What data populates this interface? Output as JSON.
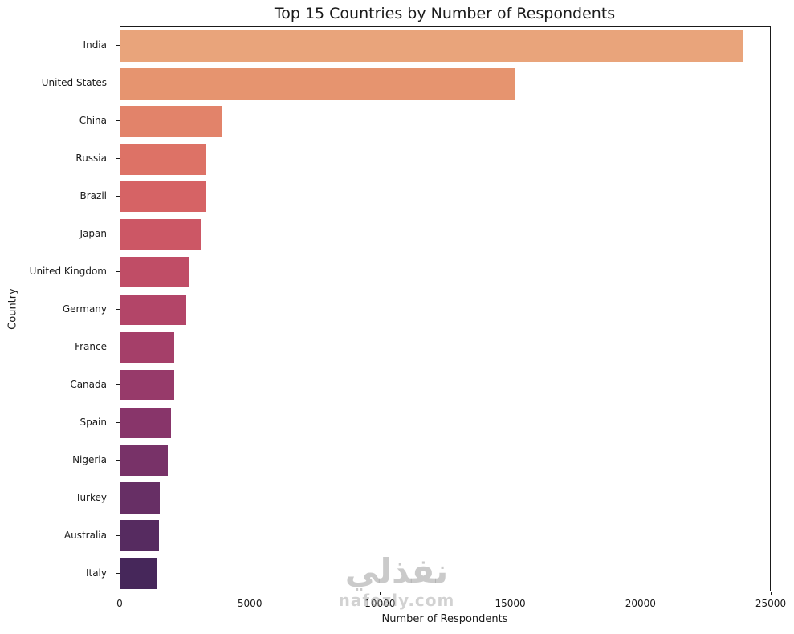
{
  "chart_data": {
    "type": "bar",
    "orientation": "horizontal",
    "title": "Top 15 Countries by Number of Respondents",
    "xlabel": "Number of Respondents",
    "ylabel": "Country",
    "categories": [
      "India",
      "United States",
      "China",
      "Russia",
      "Brazil",
      "Japan",
      "United Kingdom",
      "Germany",
      "France",
      "Canada",
      "Spain",
      "Nigeria",
      "Turkey",
      "Australia",
      "Italy"
    ],
    "values": [
      23900,
      15150,
      3900,
      3310,
      3280,
      3070,
      2650,
      2520,
      2080,
      2060,
      1950,
      1830,
      1510,
      1470,
      1420
    ],
    "xlim": [
      0,
      25000
    ],
    "xticks": [
      0,
      5000,
      10000,
      15000,
      20000,
      25000
    ],
    "grid": false,
    "legend": "none",
    "palette": "flare",
    "bar_colors": [
      "#e9a47b",
      "#e6946f",
      "#e2836a",
      "#dd7266",
      "#d66365",
      "#cc5765",
      "#c04d66",
      "#b34568",
      "#a53f69",
      "#973a6a",
      "#88356a",
      "#783268",
      "#672f65",
      "#562b60",
      "#46275a"
    ]
  },
  "watermark": {
    "arabic_text": "نفذلي",
    "latin_text": "nafezly.com"
  }
}
